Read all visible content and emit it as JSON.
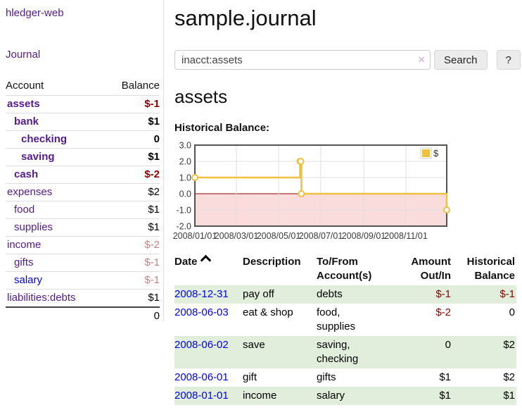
{
  "colors": {
    "link_visited_purple": "#551a8b",
    "link_blue": "#0000ee",
    "negative_red": "#8b0000",
    "row_stripe_green": "#e0eedb",
    "chart_line_gold": "#edc240",
    "button_gray": "#ececec"
  },
  "sidebar": {
    "brand": "hledger-web",
    "nav": [
      {
        "label": "Journal"
      }
    ],
    "accounts_table": {
      "headers": {
        "account": "Account",
        "balance": "Balance"
      },
      "rows": [
        {
          "name": "assets",
          "indent": 1,
          "balance": "$-1",
          "bold": true,
          "neg": "strong"
        },
        {
          "name": "bank",
          "indent": 2,
          "balance": "$1",
          "bold": true
        },
        {
          "name": "checking",
          "indent": 3,
          "balance": "0",
          "bold": true
        },
        {
          "name": "saving",
          "indent": 3,
          "balance": "$1",
          "bold": true
        },
        {
          "name": "cash",
          "indent": 2,
          "balance": "$-2",
          "bold": true,
          "neg": "strong"
        },
        {
          "name": "expenses",
          "indent": 1,
          "balance": "$2"
        },
        {
          "name": "food",
          "indent": 2,
          "balance": "$1"
        },
        {
          "name": "supplies",
          "indent": 2,
          "balance": "$1"
        },
        {
          "name": "income",
          "indent": 1,
          "balance": "$-2",
          "neg": "faded"
        },
        {
          "name": "gifts",
          "indent": 2,
          "balance": "$-1",
          "neg": "faded"
        },
        {
          "name": "salary",
          "indent": 2,
          "balance": "$-1",
          "neg": "faded",
          "link": "blue"
        },
        {
          "name": "liabilities:debts",
          "indent": 1,
          "balance": "$1"
        }
      ],
      "total": "0"
    }
  },
  "main": {
    "title": "sample.journal",
    "search": {
      "value": "inacct:assets",
      "clear_icon": "×",
      "button_label": "Search",
      "help_label": "?"
    },
    "account_heading": "assets",
    "chart_label": "Historical Balance:",
    "register": {
      "headers": [
        {
          "label": "Date",
          "sort": "asc"
        },
        {
          "label": "Description"
        },
        {
          "label": "To/From Account(s)"
        },
        {
          "label": "Amount Out/In",
          "align": "right"
        },
        {
          "label": "Historical Balance",
          "align": "right"
        }
      ],
      "rows": [
        {
          "date": "2008-12-31",
          "description": "pay off",
          "accounts": "debts",
          "amount": "$-1",
          "balance": "$-1"
        },
        {
          "date": "2008-06-03",
          "description": "eat & shop",
          "accounts": "food, supplies",
          "amount": "$-2",
          "balance": "0"
        },
        {
          "date": "2008-06-02",
          "description": "save",
          "accounts": "saving, checking",
          "amount": "0",
          "balance": "$2"
        },
        {
          "date": "2008-06-01",
          "description": "gift",
          "accounts": "gifts",
          "amount": "$1",
          "balance": "$2"
        },
        {
          "date": "2008-01-01",
          "description": "income",
          "accounts": "salary",
          "amount": "$1",
          "balance": "$1"
        }
      ]
    }
  },
  "chart_data": {
    "type": "line",
    "step": true,
    "title": "Historical Balance",
    "legend": [
      {
        "label": "$",
        "color": "#edc240"
      }
    ],
    "legend_position": "top-right",
    "grid": true,
    "x_range_days": 364,
    "x_ticks": [
      {
        "label": "2008/01/01",
        "day": 0
      },
      {
        "label": "2008/03/01",
        "day": 60
      },
      {
        "label": "2008/05/01",
        "day": 121
      },
      {
        "label": "2008/07/01",
        "day": 182
      },
      {
        "label": "2008/09/01",
        "day": 244
      },
      {
        "label": "2008/11/01",
        "day": 305
      }
    ],
    "y_ticks": [
      {
        "label": "3.0",
        "value": 3
      },
      {
        "label": "2.0",
        "value": 2
      },
      {
        "label": "1.0",
        "value": 1
      },
      {
        "label": "0.0",
        "value": 0
      },
      {
        "label": "-1.0",
        "value": -1
      },
      {
        "label": "-2.0",
        "value": -2
      }
    ],
    "ylim": [
      -2,
      3
    ],
    "points": [
      {
        "date": "2008-01-01",
        "day": 0,
        "value": 1
      },
      {
        "date": "2008-06-01",
        "day": 152,
        "value": 2
      },
      {
        "date": "2008-06-02",
        "day": 153,
        "value": 2
      },
      {
        "date": "2008-06-03",
        "day": 154,
        "value": 0
      },
      {
        "date": "2008-12-31",
        "day": 364,
        "value": -1
      }
    ],
    "colors": {
      "line": "#edc240",
      "marker_fill": "#ffffff",
      "negative_region": "#fbdcdc",
      "zero_line": "#8b0000",
      "grid": "#e0e0e0",
      "border": "#545454",
      "tick_text": "#3a3a3a"
    }
  }
}
